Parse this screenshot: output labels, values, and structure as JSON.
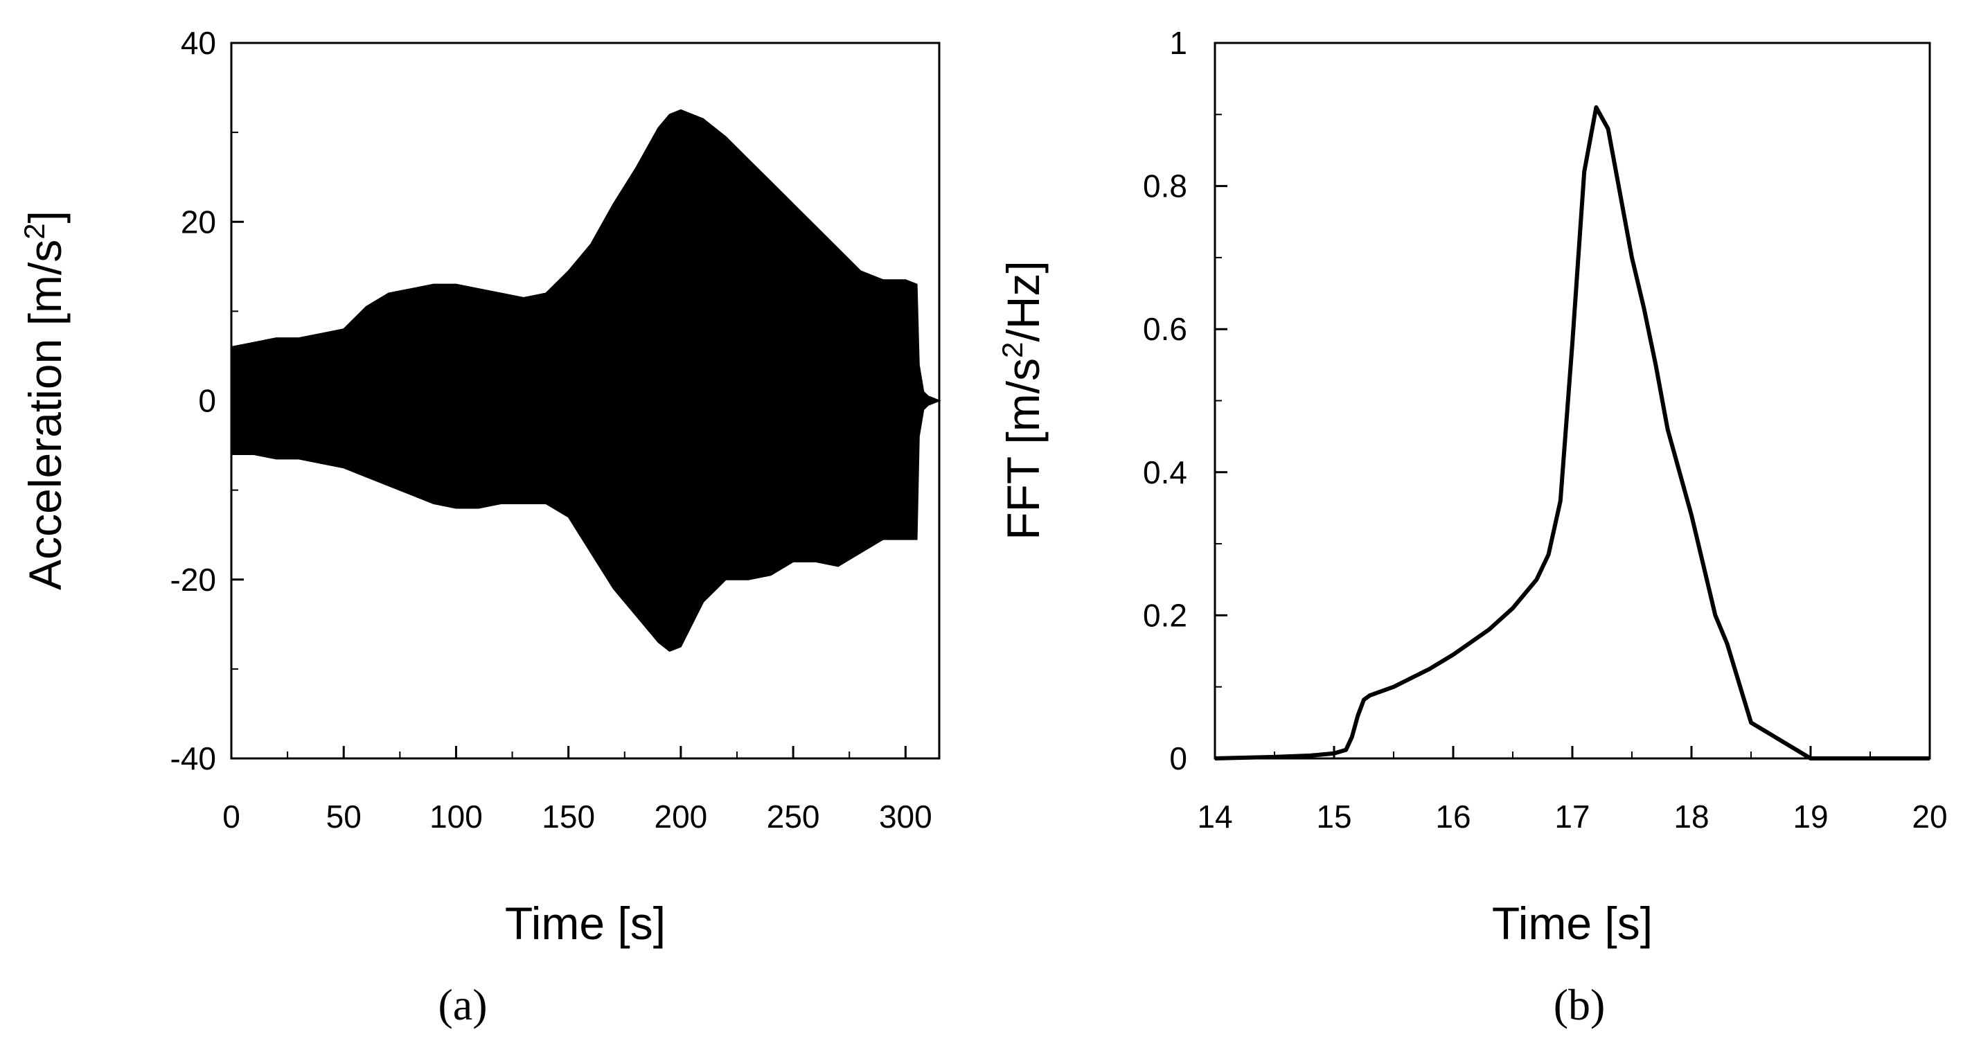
{
  "chart_data": [
    {
      "panel": "(a)",
      "type": "area",
      "xlabel": "Time [s]",
      "ylabel_main": "Acceleration [m/s",
      "ylabel_sup": "2",
      "ylabel_end": "]",
      "xlim": [
        0,
        315
      ],
      "ylim": [
        -40,
        40
      ],
      "xticks": [
        0,
        50,
        100,
        150,
        200,
        250,
        300
      ],
      "yticks": [
        -40,
        -20,
        0,
        20,
        40
      ],
      "grid": false,
      "series": [
        {
          "style": "envelope",
          "x": [
            0,
            10,
            20,
            30,
            40,
            50,
            60,
            70,
            80,
            90,
            100,
            110,
            120,
            130,
            140,
            150,
            160,
            170,
            180,
            190,
            195,
            200,
            205,
            210,
            220,
            230,
            240,
            250,
            260,
            270,
            280,
            290,
            300,
            305,
            306,
            308,
            310,
            312,
            315
          ],
          "upper": [
            6,
            6.5,
            7,
            7,
            7.5,
            8,
            10.5,
            12,
            12.5,
            13,
            13,
            12.5,
            12,
            11.5,
            12,
            14.5,
            17.5,
            22,
            26,
            30.5,
            32,
            32.5,
            32,
            31.5,
            29.5,
            27,
            24.5,
            22,
            19.5,
            17,
            14.5,
            13.5,
            13.5,
            13,
            4,
            1,
            0.5,
            0.3,
            0
          ],
          "lower": [
            -6,
            -6,
            -6.5,
            -6.5,
            -7,
            -7.5,
            -8.5,
            -9.5,
            -10.5,
            -11.5,
            -12,
            -12,
            -11.5,
            -11.5,
            -11.5,
            -13,
            -17,
            -21,
            -24,
            -27,
            -28,
            -27.5,
            -25,
            -22.5,
            -20,
            -20,
            -19.5,
            -18,
            -18,
            -18.5,
            -17,
            -15.5,
            -15.5,
            -15.5,
            -4,
            -1,
            -0.5,
            -0.3,
            0
          ]
        }
      ]
    },
    {
      "panel": "(b)",
      "type": "line",
      "xlabel": "Time [s]",
      "ylabel_main": "FFT [m/s",
      "ylabel_sup": "2",
      "ylabel_end": "/Hz]",
      "xlim": [
        14,
        20
      ],
      "ylim": [
        0,
        1
      ],
      "xticks": [
        14,
        15,
        16,
        17,
        18,
        19,
        20
      ],
      "xtick_labels": [
        "14",
        "15",
        "16",
        "17",
        "18",
        "19",
        "20"
      ],
      "yticks": [
        0,
        0.2,
        0.4,
        0.6,
        0.8,
        1
      ],
      "ytick_labels": [
        "0",
        "0.2",
        "0.4",
        "0.6",
        "0.8",
        "1"
      ],
      "grid": false,
      "series": [
        {
          "x": [
            14,
            14.5,
            14.8,
            15.0,
            15.1,
            15.15,
            15.2,
            15.25,
            15.3,
            15.5,
            15.8,
            16.0,
            16.3,
            16.5,
            16.7,
            16.8,
            16.9,
            17.0,
            17.1,
            17.2,
            17.3,
            17.4,
            17.5,
            17.6,
            17.7,
            17.8,
            17.9,
            18.0,
            18.1,
            18.2,
            18.3,
            18.5,
            19.0,
            19.5,
            20
          ],
          "y": [
            0,
            0.002,
            0.004,
            0.007,
            0.012,
            0.03,
            0.06,
            0.082,
            0.088,
            0.1,
            0.125,
            0.145,
            0.18,
            0.21,
            0.25,
            0.285,
            0.36,
            0.58,
            0.82,
            0.91,
            0.88,
            0.79,
            0.7,
            0.63,
            0.55,
            0.46,
            0.4,
            0.34,
            0.27,
            0.2,
            0.16,
            0.05,
            0,
            0,
            0
          ]
        }
      ]
    }
  ]
}
